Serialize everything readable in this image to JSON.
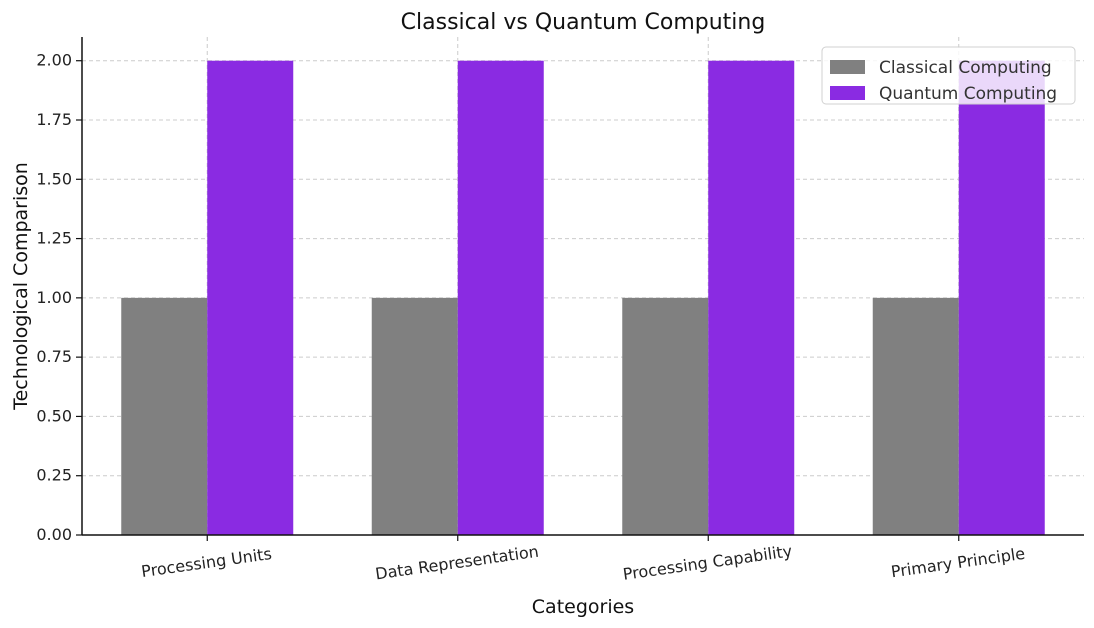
{
  "chart_data": {
    "type": "bar",
    "title": "Classical vs Quantum Computing",
    "xlabel": "Categories",
    "ylabel": "Technological Comparison",
    "categories": [
      "Processing Units",
      "Data Representation",
      "Processing Capability",
      "Primary Principle"
    ],
    "series": [
      {
        "name": "Classical Computing",
        "values": [
          1,
          1,
          1,
          1
        ],
        "color": "#808080"
      },
      {
        "name": "Quantum Computing",
        "values": [
          2,
          2,
          2,
          2
        ],
        "color": "#8a2be2"
      }
    ],
    "ylim": [
      0,
      2.1
    ],
    "yticks": [
      "0.00",
      "0.25",
      "0.50",
      "0.75",
      "1.00",
      "1.25",
      "1.50",
      "1.75",
      "2.00"
    ],
    "grid": true,
    "legend_position": "top-right",
    "xtick_rotation": "slight counter-clockwise"
  }
}
